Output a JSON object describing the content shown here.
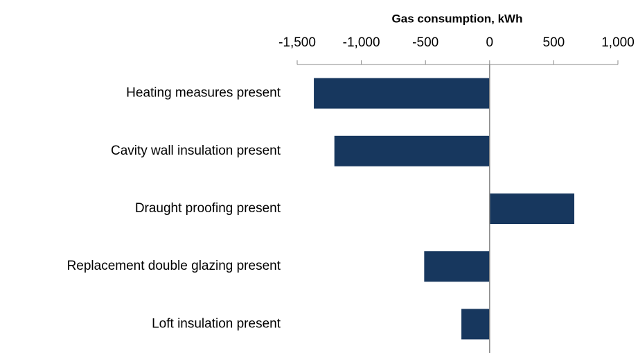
{
  "chart_data": {
    "type": "bar",
    "orientation": "horizontal",
    "x_axis_label": "Gas consumption, kWh",
    "categories": [
      "Heating measures present",
      "Cavity wall insulation present",
      "Draught proofing present",
      "Replacement double glazing present",
      "Loft insulation present"
    ],
    "values": [
      -1370,
      -1210,
      660,
      -510,
      -220
    ],
    "color": "#17375e",
    "xlim": [
      -1500,
      1000
    ],
    "xticks": [
      {
        "value": -1500,
        "label": "-1,500"
      },
      {
        "value": -1000,
        "label": "-1,000"
      },
      -500,
      0,
      500,
      {
        "value": 1000,
        "label": "1,000"
      }
    ],
    "axis_position": "top",
    "grid": false
  }
}
